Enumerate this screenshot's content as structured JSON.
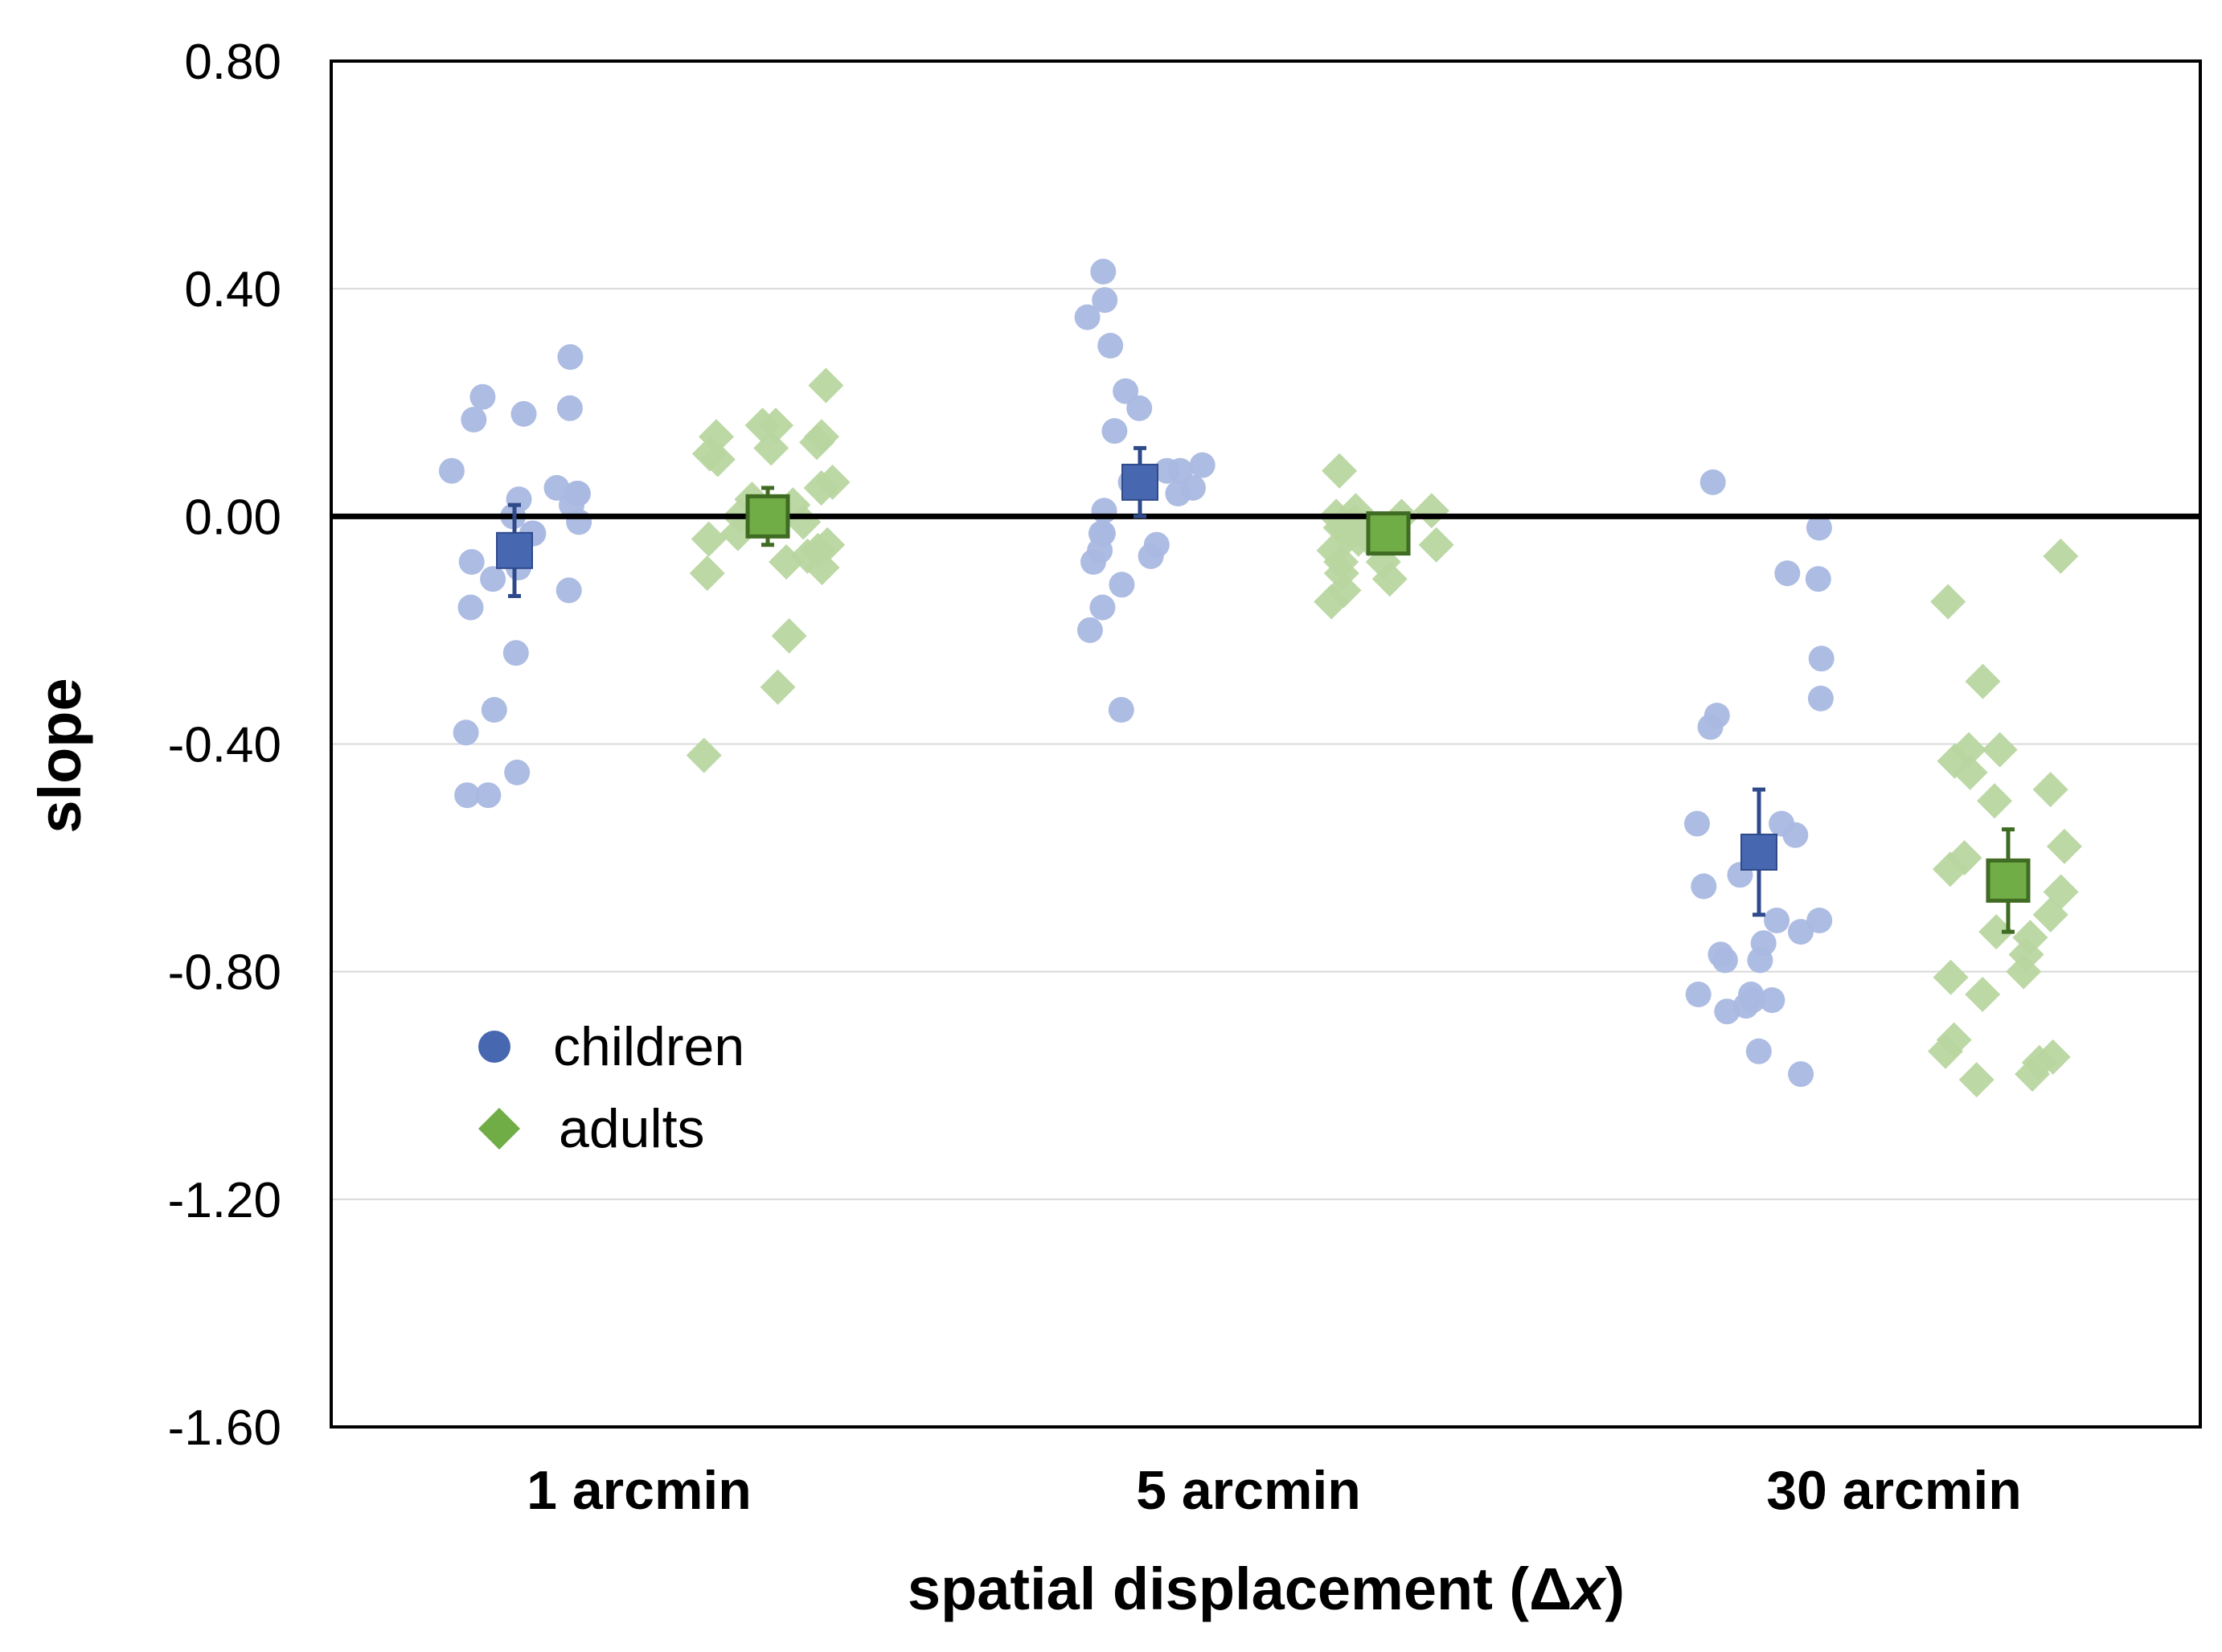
{
  "chart_data": {
    "type": "scatter",
    "title": "",
    "xlabel": {
      "prefix": "spatial displacement (",
      "delta": "Δ",
      "var": "x",
      "suffix": ")"
    },
    "ylabel": "slope",
    "categories": [
      "1 arcmin",
      "5 arcmin",
      "30 arcmin"
    ],
    "ylim": [
      -1.6,
      0.8
    ],
    "yticks": [
      0.8,
      0.4,
      0.0,
      -0.4,
      -0.8,
      -1.2,
      -1.6
    ],
    "ytick_labels": [
      "0.80",
      "0.40",
      "0.00",
      "-0.40",
      "-0.80",
      "-1.20",
      "-1.60"
    ],
    "gridlines": true,
    "reference_line": 0.0,
    "legend": {
      "position": "lower-left",
      "entries": [
        "children",
        "adults"
      ]
    },
    "colors": {
      "children": "#4767b1",
      "children_light": "#a9b8e0",
      "adults": "#70ad47",
      "adults_light": "#b8d6a0",
      "grid": "#d9d9d9",
      "axis": "#000000"
    },
    "series": [
      {
        "name": "children",
        "marker": "circle",
        "means": [
          -0.06,
          0.06,
          -0.59
        ],
        "errors": [
          0.08,
          0.06,
          0.11
        ],
        "points": [
          [
            0.28,
            0.21,
            0.19,
            0.18,
            0.17,
            0.08,
            0.05,
            0.04,
            0.04,
            0.03,
            0.02,
            0.0,
            -0.01,
            -0.03,
            -0.03,
            -0.08,
            -0.09,
            -0.11,
            -0.13,
            -0.16,
            -0.24,
            -0.34,
            -0.38,
            -0.45,
            -0.49,
            -0.49
          ],
          [
            0.43,
            0.38,
            0.35,
            0.3,
            0.22,
            0.19,
            0.15,
            0.09,
            0.08,
            0.08,
            0.06,
            0.05,
            0.04,
            0.01,
            -0.03,
            -0.03,
            -0.05,
            -0.06,
            -0.07,
            -0.08,
            -0.12,
            -0.16,
            -0.2,
            -0.34
          ],
          [
            0.06,
            -0.02,
            -0.1,
            -0.11,
            -0.25,
            -0.32,
            -0.35,
            -0.37,
            -0.54,
            -0.54,
            -0.56,
            -0.63,
            -0.65,
            -0.71,
            -0.71,
            -0.73,
            -0.75,
            -0.77,
            -0.78,
            -0.78,
            -0.84,
            -0.84,
            -0.85,
            -0.85,
            -0.86,
            -0.87,
            -0.94,
            -0.98
          ]
        ]
      },
      {
        "name": "adults",
        "marker": "diamond",
        "means": [
          0.0,
          -0.03,
          -0.64
        ],
        "errors": [
          0.05,
          0.02,
          0.09
        ],
        "points": [
          [
            0.23,
            0.16,
            0.16,
            0.14,
            0.14,
            0.13,
            0.12,
            0.11,
            0.1,
            0.06,
            0.05,
            0.03,
            0.02,
            0.0,
            -0.01,
            -0.03,
            -0.04,
            -0.05,
            -0.06,
            -0.07,
            -0.08,
            -0.09,
            -0.1,
            -0.21,
            -0.3,
            -0.42
          ],
          [
            0.08,
            0.01,
            0.01,
            0.0,
            0.0,
            -0.01,
            -0.01,
            -0.02,
            -0.02,
            -0.03,
            -0.03,
            -0.04,
            -0.04,
            -0.05,
            -0.06,
            -0.08,
            -0.08,
            -0.1,
            -0.11,
            -0.13,
            -0.15
          ],
          [
            -0.07,
            -0.15,
            -0.29,
            -0.41,
            -0.41,
            -0.43,
            -0.45,
            -0.48,
            -0.5,
            -0.58,
            -0.6,
            -0.62,
            -0.66,
            -0.7,
            -0.73,
            -0.74,
            -0.77,
            -0.8,
            -0.81,
            -0.84,
            -0.92,
            -0.94,
            -0.95,
            -0.96,
            -0.98,
            -0.99
          ]
        ]
      }
    ]
  }
}
